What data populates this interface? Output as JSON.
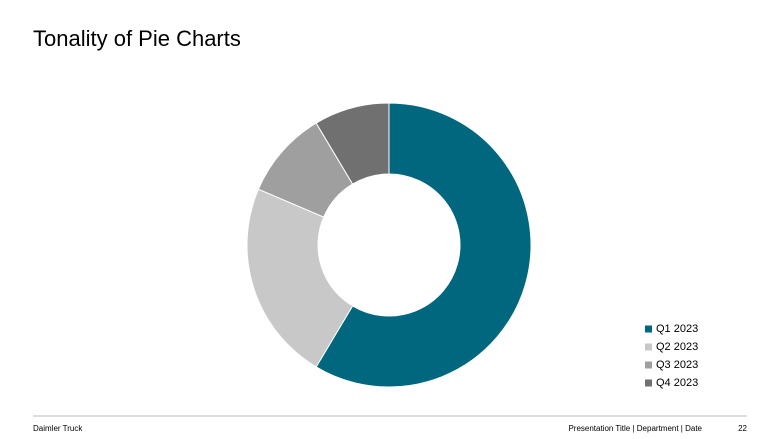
{
  "title": "Tonality of Pie Charts",
  "chart_data": {
    "type": "donut",
    "categories": [
      "Q1 2023",
      "Q2 2023",
      "Q3 2023",
      "Q4 2023"
    ],
    "values": [
      8.2,
      3.2,
      1.4,
      1.2
    ],
    "colors": [
      "#00677f",
      "#c8c8c8",
      "#9f9f9f",
      "#707070"
    ]
  },
  "footer": {
    "left": "Daimler Truck",
    "center": "Presentation Title | Department | Date",
    "page": "22"
  }
}
